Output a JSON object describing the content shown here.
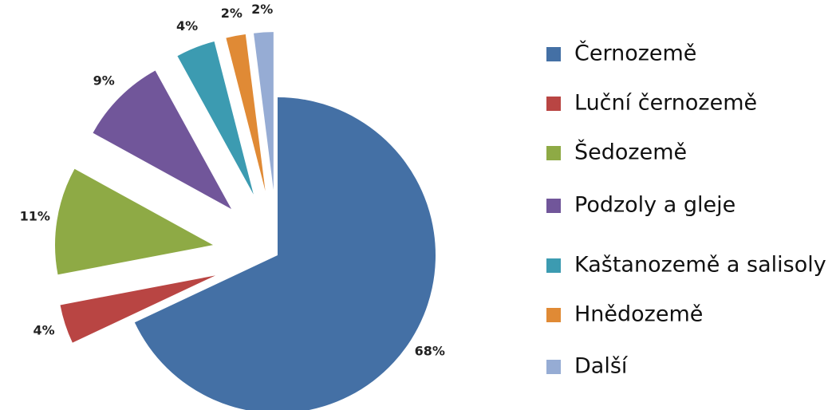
{
  "chart_data": {
    "type": "pie",
    "categories": [
      "Černozemě",
      "Luční černozemě",
      "Šedozemě",
      "Podzoly a gleje",
      "Kaštanozemě a salisoly",
      "Hnědozemě",
      "Další"
    ],
    "values": [
      68,
      4,
      11,
      9,
      4,
      2,
      2
    ],
    "value_labels": [
      "68%",
      "4%",
      "11%",
      "9%",
      "4%",
      "2%",
      "2%"
    ],
    "colors": [
      "#4470a5",
      "#b94543",
      "#8eaa45",
      "#71569a",
      "#3c9bb1",
      "#e08a35",
      "#96acd4"
    ],
    "legend": "right"
  }
}
